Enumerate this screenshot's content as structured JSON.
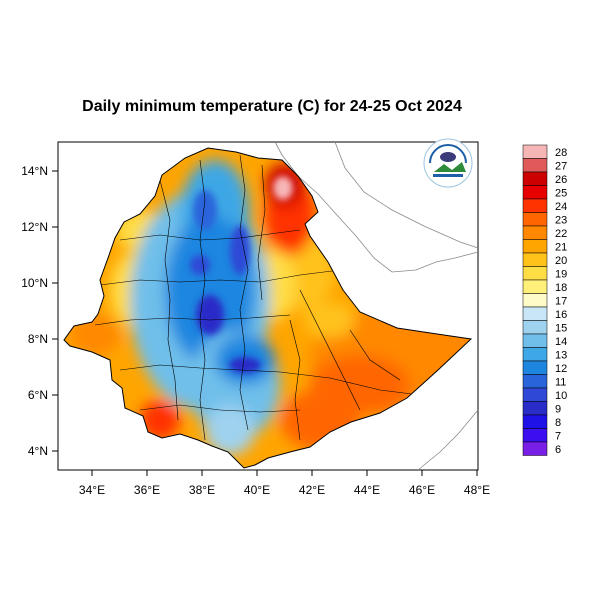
{
  "title": "Daily minimum temperature (C) for 24-25 Oct 2024",
  "map": {
    "x_ticks": [
      "34°E",
      "36°E",
      "38°E",
      "40°E",
      "42°E",
      "44°E",
      "46°E",
      "48°E"
    ],
    "y_ticks": [
      "14°N",
      "12°N",
      "10°N",
      "8°N",
      "6°N",
      "4°N"
    ],
    "lon_range": [
      33,
      48.2
    ],
    "lat_range": [
      3.2,
      15.1
    ]
  },
  "colorbar": {
    "levels": [
      "28",
      "27",
      "26",
      "25",
      "24",
      "23",
      "22",
      "21",
      "20",
      "19",
      "18",
      "17",
      "16",
      "15",
      "14",
      "13",
      "12",
      "11",
      "10",
      "9",
      "8",
      "7",
      "6"
    ],
    "colors": [
      "#f7b6b6",
      "#e05a5a",
      "#cc0000",
      "#e60000",
      "#ff3300",
      "#ff6600",
      "#ff8800",
      "#ffa500",
      "#ffc21a",
      "#ffdd44",
      "#fff07a",
      "#fffbc8",
      "#c9e6f7",
      "#9fd2ef",
      "#6fbfea",
      "#3ea7e6",
      "#1f86e0",
      "#2a64db",
      "#2f48d6",
      "#2a2cc8",
      "#1f12e6",
      "#3b0ff0",
      "#7a1fe6"
    ]
  },
  "logo": {
    "icon": "ethiopian-meteorology-institute-logo",
    "text": "Ethiopian Meteorology Institute"
  }
}
